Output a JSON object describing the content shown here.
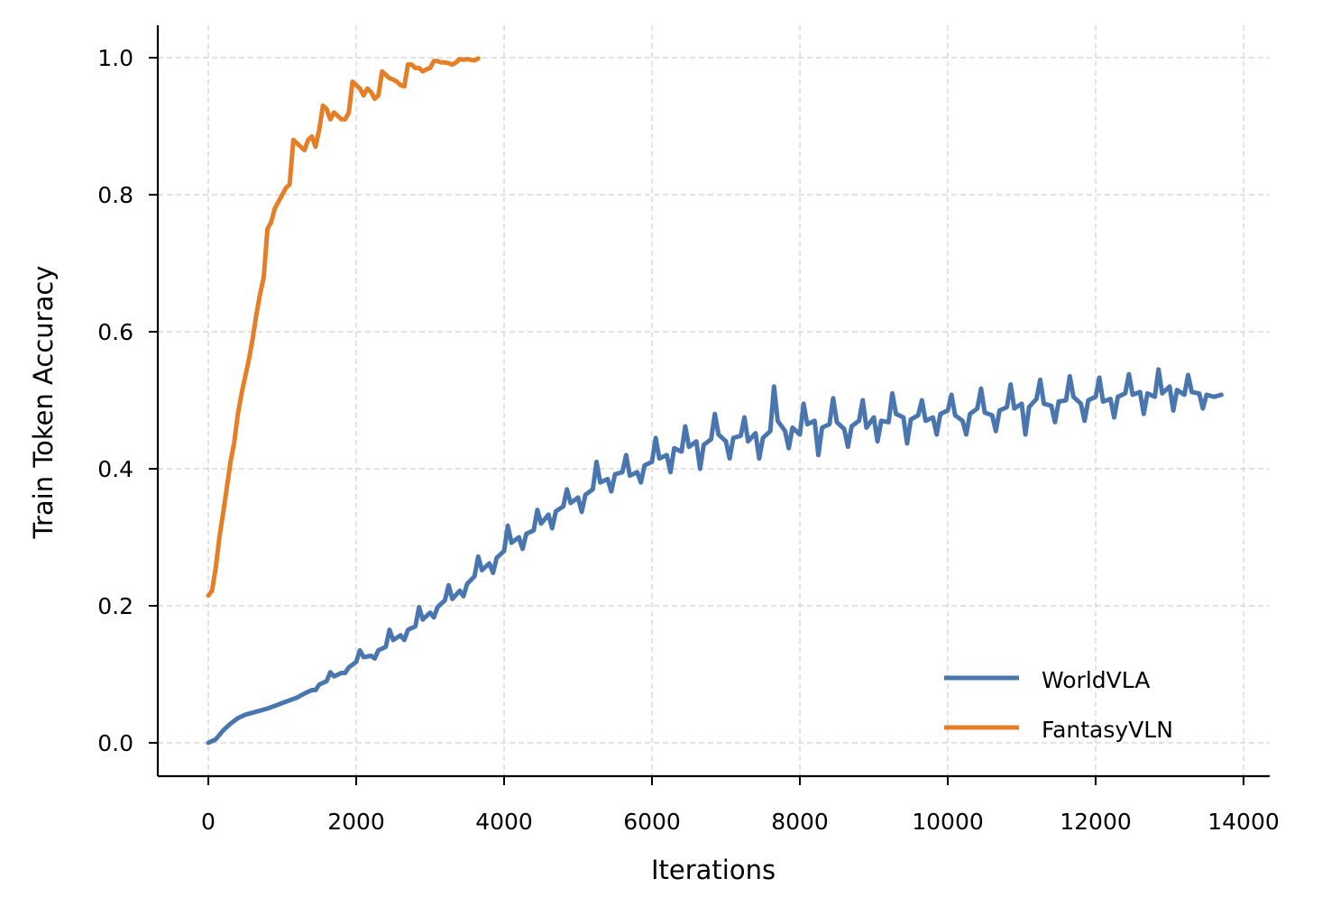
{
  "chart_data": {
    "type": "line",
    "title": "",
    "xlabel": "Iterations",
    "ylabel": "Train Token Accuracy",
    "xlim": [
      -700,
      14400
    ],
    "ylim": [
      -0.05,
      1.05
    ],
    "xticks": [
      0,
      2000,
      4000,
      6000,
      8000,
      10000,
      12000,
      14000
    ],
    "xtick_labels": [
      "0",
      "2000",
      "4000",
      "6000",
      "8000",
      "10000",
      "12000",
      "14000"
    ],
    "yticks": [
      0.0,
      0.2,
      0.4,
      0.6,
      0.8,
      1.0
    ],
    "ytick_labels": [
      "0.0",
      "0.2",
      "0.4",
      "0.6",
      "0.8",
      "1.0"
    ],
    "grid": true,
    "legend_position": "lower right",
    "series": [
      {
        "name": "WorldVLA",
        "color": "#4a76b0",
        "x": [
          0,
          100,
          200,
          300,
          400,
          500,
          600,
          700,
          800,
          900,
          1000,
          1100,
          1200,
          1300,
          1400,
          1500,
          1600,
          1700,
          1800,
          1900,
          2000,
          2100,
          2200,
          2300,
          2400,
          2500,
          2600,
          2700,
          2800,
          2900,
          3000,
          3100,
          3200,
          3300,
          3400,
          3500,
          3600,
          3700,
          3800,
          3900,
          4000,
          4100,
          4200,
          4300,
          4400,
          4500,
          4600,
          4700,
          4800,
          4900,
          5000,
          5100,
          5200,
          5300,
          5400,
          5500,
          5600,
          5700,
          5800,
          5900,
          6000,
          6100,
          6200,
          6300,
          6400,
          6500,
          6600,
          6700,
          6800,
          6900,
          7000,
          7100,
          7200,
          7300,
          7400,
          7500,
          7600,
          7700,
          7800,
          7900,
          8000,
          8100,
          8200,
          8300,
          8400,
          8500,
          8600,
          8700,
          8800,
          8900,
          9000,
          9100,
          9200,
          9300,
          9400,
          9500,
          9600,
          9700,
          9800,
          9900,
          10000,
          10100,
          10200,
          10300,
          10400,
          10500,
          10600,
          10700,
          10800,
          10900,
          11000,
          11100,
          11200,
          11300,
          11400,
          11500,
          11600,
          11700,
          11800,
          11900,
          12000,
          12100,
          12200,
          12300,
          12400,
          12500,
          12600,
          12700,
          12800,
          12900,
          13000,
          13100,
          13200,
          13300,
          13400,
          13500,
          13600,
          13700
        ],
        "values": [
          0.0,
          0.005,
          0.018,
          0.028,
          0.036,
          0.041,
          0.044,
          0.047,
          0.05,
          0.054,
          0.058,
          0.062,
          0.066,
          0.072,
          0.077,
          0.085,
          0.09,
          0.097,
          0.102,
          0.11,
          0.118,
          0.125,
          0.127,
          0.135,
          0.14,
          0.15,
          0.157,
          0.165,
          0.17,
          0.18,
          0.19,
          0.198,
          0.208,
          0.21,
          0.222,
          0.232,
          0.243,
          0.252,
          0.262,
          0.27,
          0.28,
          0.292,
          0.3,
          0.305,
          0.31,
          0.32,
          0.333,
          0.338,
          0.345,
          0.35,
          0.358,
          0.362,
          0.37,
          0.38,
          0.385,
          0.392,
          0.395,
          0.39,
          0.395,
          0.405,
          0.41,
          0.415,
          0.42,
          0.43,
          0.425,
          0.432,
          0.44,
          0.435,
          0.443,
          0.45,
          0.44,
          0.445,
          0.448,
          0.44,
          0.452,
          0.445,
          0.455,
          0.47,
          0.455,
          0.46,
          0.45,
          0.465,
          0.47,
          0.46,
          0.465,
          0.468,
          0.458,
          0.462,
          0.47,
          0.46,
          0.475,
          0.47,
          0.468,
          0.48,
          0.475,
          0.472,
          0.478,
          0.47,
          0.475,
          0.48,
          0.485,
          0.478,
          0.47,
          0.48,
          0.488,
          0.482,
          0.478,
          0.485,
          0.49,
          0.488,
          0.495,
          0.49,
          0.502,
          0.495,
          0.492,
          0.498,
          0.5,
          0.505,
          0.495,
          0.5,
          0.505,
          0.498,
          0.502,
          0.505,
          0.51,
          0.508,
          0.512,
          0.51,
          0.505,
          0.51,
          0.52,
          0.515,
          0.508,
          0.512,
          0.51,
          0.508,
          0.505,
          0.508
        ],
        "noise": [
          0,
          0,
          0,
          0,
          0,
          0,
          0,
          0,
          0,
          0,
          0,
          0,
          0,
          0,
          0,
          0.008,
          0,
          0.006,
          0,
          0.008,
          0,
          0.01,
          0,
          0.012,
          0,
          0.015,
          0,
          0.015,
          0,
          0.018,
          0,
          0.015,
          0,
          0.02,
          0,
          0.018,
          0,
          0.02,
          0,
          0.022,
          0,
          0.025,
          0,
          0.022,
          0,
          0.02,
          0,
          0.025,
          0,
          0.02,
          0,
          0.025,
          0,
          0.03,
          0,
          0.025,
          0,
          0.03,
          0,
          0.025,
          0,
          0.03,
          0,
          0.035,
          0,
          0.03,
          0,
          0.035,
          0,
          0.03,
          0,
          0.03,
          0,
          0.035,
          0,
          0.03,
          0,
          0.05,
          0,
          0.03,
          0,
          0.03,
          0,
          0.04,
          0,
          0.035,
          0,
          0.03,
          0,
          0.04,
          0,
          0.03,
          0,
          0.03,
          0,
          0.035,
          0,
          0.03,
          0,
          0.03,
          0,
          0.03,
          0,
          0.03,
          0,
          0.035,
          0,
          0.03,
          0,
          0.035,
          0,
          0.04,
          0,
          0.035,
          0,
          0.03,
          0,
          0.03,
          0,
          0.03,
          0,
          0.035,
          0,
          0.03,
          0,
          0.03,
          0,
          0.03,
          0,
          0.035,
          0,
          0.03,
          0,
          0.025,
          0,
          0.02,
          0,
          0.015,
          0
        ]
      },
      {
        "name": "FantasyVLN",
        "color": "#e57f27",
        "x": [
          0,
          50,
          100,
          150,
          200,
          250,
          300,
          350,
          400,
          450,
          500,
          550,
          600,
          650,
          700,
          750,
          800,
          850,
          900,
          950,
          1000,
          1050,
          1100,
          1150,
          1200,
          1250,
          1300,
          1350,
          1400,
          1450,
          1500,
          1550,
          1600,
          1650,
          1700,
          1750,
          1800,
          1850,
          1900,
          1950,
          2000,
          2050,
          2100,
          2150,
          2200,
          2250,
          2300,
          2350,
          2400,
          2450,
          2500,
          2550,
          2600,
          2650,
          2700,
          2750,
          2800,
          2850,
          2900,
          2950,
          3000,
          3050,
          3100,
          3150,
          3200,
          3250,
          3300,
          3350,
          3400,
          3450,
          3500,
          3550,
          3600,
          3650
        ],
        "values": [
          0.215,
          0.222,
          0.255,
          0.3,
          0.335,
          0.372,
          0.41,
          0.438,
          0.48,
          0.51,
          0.535,
          0.56,
          0.59,
          0.625,
          0.655,
          0.68,
          0.75,
          0.76,
          0.78,
          0.79,
          0.8,
          0.81,
          0.815,
          0.88,
          0.875,
          0.87,
          0.865,
          0.88,
          0.885,
          0.87,
          0.895,
          0.93,
          0.925,
          0.91,
          0.92,
          0.915,
          0.91,
          0.91,
          0.92,
          0.965,
          0.96,
          0.955,
          0.945,
          0.955,
          0.95,
          0.94,
          0.945,
          0.98,
          0.975,
          0.97,
          0.968,
          0.965,
          0.96,
          0.958,
          0.99,
          0.99,
          0.985,
          0.985,
          0.98,
          0.983,
          0.985,
          0.995,
          0.995,
          0.993,
          0.993,
          0.992,
          0.99,
          0.993,
          0.998,
          0.997,
          0.998,
          0.997,
          0.996,
          0.999
        ],
        "noise": []
      }
    ]
  },
  "legend": {
    "items": [
      {
        "label": "WorldVLA",
        "color": "#4a76b0"
      },
      {
        "label": "FantasyVLN",
        "color": "#e57f27"
      }
    ]
  }
}
